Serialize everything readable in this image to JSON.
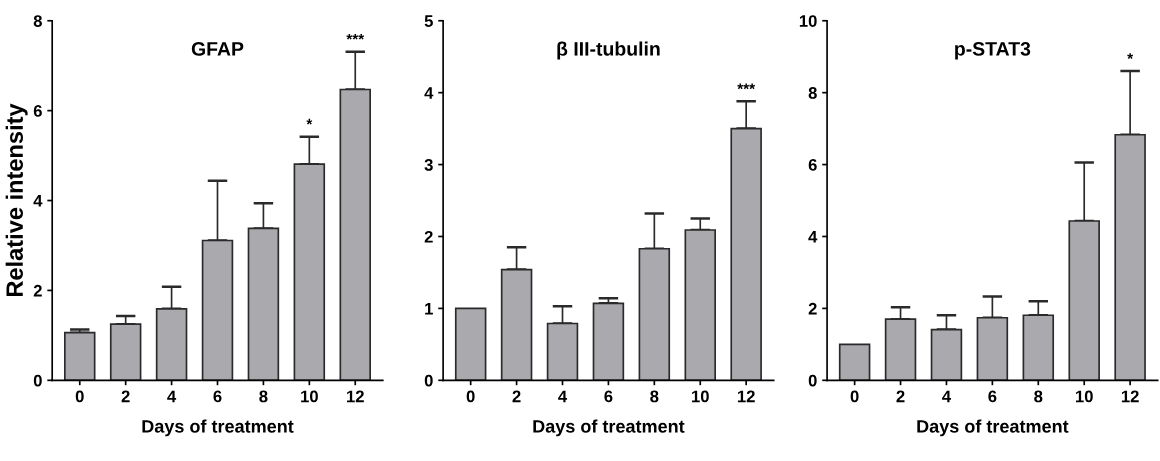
{
  "chart_data": [
    {
      "type": "bar",
      "title": "GFAP",
      "xlabel": "Days of treatment",
      "ylabel": "Relative intensity",
      "categories": [
        "0",
        "2",
        "4",
        "6",
        "8",
        "10",
        "12"
      ],
      "series": [
        {
          "color": "#a9a9ae",
          "values": [
            1.06,
            1.25,
            1.59,
            3.11,
            3.38,
            4.81,
            6.47
          ],
          "errors": [
            [
              1.06,
              1.13
            ],
            [
              1.25,
              1.43
            ],
            [
              1.59,
              2.08
            ],
            [
              3.11,
              4.44
            ],
            [
              3.38,
              3.94
            ],
            [
              4.81,
              5.42
            ],
            [
              6.47,
              7.31
            ]
          ]
        }
      ],
      "ylim": [
        0,
        8
      ],
      "yticks": [
        0,
        2,
        4,
        6,
        8
      ],
      "grid": false,
      "legend": false,
      "annotations": [
        {
          "text": "*",
          "x": "10",
          "y": 5.42
        },
        {
          "text": "***",
          "x": "12",
          "y": 7.31
        }
      ]
    },
    {
      "type": "bar",
      "title": "β III-tubulin",
      "xlabel": "Days of treatment",
      "categories": [
        "0",
        "2",
        "4",
        "6",
        "8",
        "10",
        "12"
      ],
      "series": [
        {
          "color": "#a9a9ae",
          "values": [
            1.0,
            1.54,
            0.79,
            1.07,
            1.83,
            2.09,
            3.5
          ],
          "errors": [
            null,
            [
              1.54,
              1.85
            ],
            [
              0.79,
              1.03
            ],
            [
              1.07,
              1.14
            ],
            [
              1.83,
              2.32
            ],
            [
              2.09,
              2.25
            ],
            [
              3.5,
              3.88
            ]
          ]
        }
      ],
      "ylim": [
        0,
        5
      ],
      "yticks": [
        0,
        1,
        2,
        3,
        4,
        5
      ],
      "grid": false,
      "legend": false,
      "annotations": [
        {
          "text": "***",
          "x": "12",
          "y": 3.88
        }
      ]
    },
    {
      "type": "bar",
      "title": "p-STAT3",
      "xlabel": "Days of treatment",
      "categories": [
        "0",
        "2",
        "4",
        "6",
        "8",
        "10",
        "12"
      ],
      "series": [
        {
          "color": "#a9a9ae",
          "values": [
            1.0,
            1.7,
            1.41,
            1.74,
            1.81,
            4.43,
            6.83
          ],
          "errors": [
            null,
            [
              1.7,
              2.03
            ],
            [
              1.41,
              1.81
            ],
            [
              1.74,
              2.33
            ],
            [
              1.81,
              2.2
            ],
            [
              4.43,
              6.06
            ],
            [
              6.83,
              8.6
            ]
          ]
        }
      ],
      "ylim": [
        0,
        10
      ],
      "yticks": [
        0,
        2,
        4,
        6,
        8,
        10
      ],
      "grid": false,
      "legend": false,
      "annotations": [
        {
          "text": "*",
          "x": "12",
          "y": 8.6
        }
      ]
    }
  ]
}
